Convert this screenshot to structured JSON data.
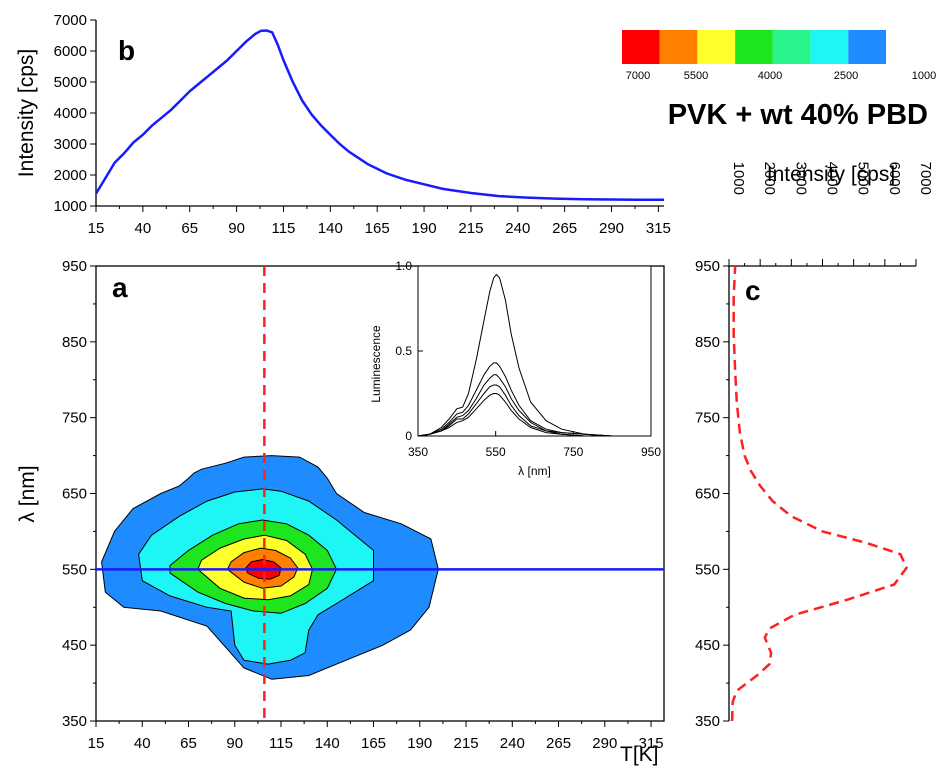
{
  "title": "PVK + wt 40% PBD",
  "colorbar": {
    "colors": [
      "#ff0000",
      "#ff7f00",
      "#ffff2a",
      "#1ee61e",
      "#2af58c",
      "#1ef5f5",
      "#1e8cff"
    ],
    "labels": [
      "7000",
      "5500",
      "4000",
      "2500",
      "1000"
    ]
  },
  "chart_data": [
    {
      "id": "b",
      "type": "line",
      "panel_label": "b",
      "ylabel": "Intensity [cps]",
      "xlabel": "",
      "xlim": [
        15,
        318
      ],
      "ylim": [
        1000,
        7000
      ],
      "xticks": [
        15,
        40,
        65,
        90,
        115,
        140,
        165,
        190,
        215,
        240,
        265,
        290,
        315
      ],
      "yticks": [
        1000,
        2000,
        3000,
        4000,
        5000,
        6000,
        7000
      ],
      "line_color": "#1a1aff",
      "x": [
        15,
        20,
        25,
        30,
        35,
        40,
        45,
        50,
        55,
        60,
        65,
        70,
        75,
        80,
        85,
        90,
        95,
        100,
        103,
        106,
        109,
        112,
        115,
        120,
        125,
        130,
        135,
        140,
        145,
        150,
        155,
        160,
        165,
        170,
        180,
        190,
        200,
        215,
        230,
        245,
        260,
        275,
        290,
        305,
        318
      ],
      "y": [
        1400,
        1900,
        2400,
        2700,
        3050,
        3300,
        3600,
        3850,
        4100,
        4400,
        4700,
        4950,
        5200,
        5450,
        5700,
        6000,
        6300,
        6550,
        6650,
        6660,
        6600,
        6200,
        5700,
        5000,
        4400,
        3950,
        3600,
        3300,
        3000,
        2750,
        2550,
        2350,
        2200,
        2050,
        1850,
        1700,
        1550,
        1420,
        1320,
        1270,
        1240,
        1220,
        1210,
        1200,
        1200
      ]
    },
    {
      "id": "a",
      "type": "heatmap",
      "panel_label": "a",
      "xlabel": "T[K]",
      "ylabel": "λ [nm]",
      "xlim": [
        15,
        322
      ],
      "ylim": [
        350,
        950
      ],
      "xticks": [
        15,
        40,
        65,
        90,
        115,
        140,
        165,
        190,
        215,
        240,
        265,
        290,
        315
      ],
      "yticks": [
        350,
        450,
        550,
        650,
        750,
        850,
        950
      ],
      "cut_temperature": 106,
      "cut_wavelength": 550,
      "contour_levels": [
        1000,
        2500,
        4000,
        5500,
        7000
      ],
      "contours": [
        {
          "level": "1000",
          "color": "#1e8cff",
          "t": [
            20,
            30,
            50,
            75,
            95,
            110,
            130,
            150,
            170,
            185,
            195,
            200,
            196,
            180,
            160,
            145,
            140,
            135,
            125,
            110,
            95,
            85,
            72,
            68,
            65,
            60,
            50,
            35,
            25,
            18,
            20
          ],
          "lam": [
            520,
            500,
            495,
            475,
            420,
            405,
            410,
            430,
            450,
            470,
            500,
            550,
            590,
            610,
            625,
            650,
            670,
            685,
            698,
            700,
            698,
            690,
            682,
            677,
            670,
            660,
            650,
            630,
            600,
            560,
            520
          ]
        },
        {
          "level": "2500",
          "color": "#1ef5f5",
          "t": [
            40,
            55,
            75,
            88,
            90,
            95,
            108,
            120,
            128,
            130,
            135,
            145,
            165,
            165,
            155,
            145,
            130,
            115,
            105,
            90,
            75,
            60,
            45,
            38,
            40
          ],
          "lam": [
            535,
            515,
            500,
            495,
            450,
            430,
            425,
            430,
            440,
            470,
            490,
            505,
            535,
            575,
            595,
            615,
            640,
            653,
            656,
            652,
            640,
            620,
            595,
            570,
            535
          ]
        },
        {
          "level": "4000",
          "color": "#1ee61e",
          "t": [
            55,
            70,
            85,
            100,
            115,
            128,
            140,
            145,
            140,
            130,
            118,
            105,
            92,
            78,
            65,
            55,
            55
          ],
          "lam": [
            545,
            520,
            505,
            495,
            492,
            505,
            525,
            550,
            575,
            595,
            610,
            615,
            610,
            595,
            575,
            555,
            545
          ]
        },
        {
          "level": "5500",
          "color": "#ffff2a",
          "t": [
            70,
            82,
            95,
            108,
            120,
            130,
            132,
            128,
            118,
            106,
            95,
            82,
            72,
            70
          ],
          "lam": [
            550,
            525,
            512,
            510,
            515,
            530,
            550,
            570,
            588,
            595,
            590,
            578,
            562,
            550
          ]
        },
        {
          "level": "7000",
          "color": "#ff7f00",
          "t": [
            86,
            95,
            105,
            115,
            122,
            124,
            120,
            112,
            104,
            95,
            88,
            86
          ],
          "lam": [
            550,
            533,
            525,
            528,
            540,
            552,
            565,
            575,
            578,
            572,
            560,
            550
          ]
        },
        {
          "level": "peak",
          "color": "#ff0000",
          "t": [
            97,
            103,
            109,
            114,
            115,
            111,
            105,
            99,
            96,
            97
          ],
          "lam": [
            545,
            538,
            537,
            542,
            552,
            560,
            563,
            560,
            552,
            545
          ]
        }
      ]
    },
    {
      "id": "c",
      "type": "line",
      "panel_label": "c",
      "xlabel": "Intensity [cps]",
      "ylabel": "",
      "xlim": [
        1000,
        7000
      ],
      "ylim": [
        350,
        950
      ],
      "xticks": [
        1000,
        2000,
        3000,
        4000,
        5000,
        6000,
        7000
      ],
      "yticks": [
        350,
        450,
        550,
        650,
        750,
        850,
        950
      ],
      "line_color": "#ff2020",
      "line_style": "dashed",
      "intensity": [
        1100,
        1120,
        1250,
        1900,
        2300,
        2350,
        2150,
        2300,
        3100,
        4800,
        6300,
        6700,
        6500,
        5400,
        4000,
        3000,
        2400,
        2000,
        1700,
        1500,
        1350,
        1250,
        1200,
        1150,
        1150,
        1200
      ],
      "wavelength": [
        350,
        375,
        390,
        410,
        425,
        440,
        460,
        472,
        490,
        510,
        530,
        552,
        570,
        585,
        600,
        620,
        640,
        660,
        680,
        700,
        730,
        770,
        810,
        860,
        910,
        950
      ]
    },
    {
      "id": "inset",
      "type": "line",
      "xlabel": "λ [nm]",
      "ylabel": "Luminescence",
      "xlim": [
        350,
        950
      ],
      "ylim": [
        0,
        1.0
      ],
      "xticks": [
        350,
        550,
        750,
        950
      ],
      "yticks": [
        0,
        0.5,
        1.0
      ],
      "ytick_labels": [
        "0",
        "0.5",
        "1.0"
      ],
      "line_color": "#000000",
      "x": [
        350,
        380,
        410,
        430,
        450,
        465,
        480,
        500,
        520,
        535,
        545,
        552,
        560,
        575,
        590,
        610,
        640,
        680,
        720,
        780,
        850,
        950
      ],
      "series": [
        {
          "y": [
            0.0,
            0.01,
            0.05,
            0.1,
            0.16,
            0.17,
            0.25,
            0.45,
            0.68,
            0.85,
            0.93,
            0.95,
            0.93,
            0.8,
            0.6,
            0.4,
            0.2,
            0.09,
            0.04,
            0.01,
            0.0,
            0.0
          ]
        },
        {
          "y": [
            0.0,
            0.01,
            0.04,
            0.08,
            0.13,
            0.14,
            0.18,
            0.27,
            0.36,
            0.41,
            0.43,
            0.43,
            0.41,
            0.35,
            0.27,
            0.18,
            0.09,
            0.04,
            0.02,
            0.01,
            0.0,
            0.0
          ]
        },
        {
          "y": [
            0.0,
            0.01,
            0.03,
            0.07,
            0.11,
            0.12,
            0.15,
            0.22,
            0.3,
            0.34,
            0.36,
            0.36,
            0.34,
            0.29,
            0.22,
            0.15,
            0.08,
            0.03,
            0.02,
            0.01,
            0.0,
            0.0
          ]
        },
        {
          "y": [
            0.0,
            0.01,
            0.03,
            0.06,
            0.1,
            0.1,
            0.13,
            0.19,
            0.25,
            0.29,
            0.3,
            0.3,
            0.29,
            0.24,
            0.18,
            0.12,
            0.06,
            0.03,
            0.01,
            0.0,
            0.0,
            0.0
          ]
        },
        {
          "y": [
            0.0,
            0.01,
            0.03,
            0.05,
            0.08,
            0.09,
            0.11,
            0.16,
            0.21,
            0.24,
            0.25,
            0.25,
            0.24,
            0.2,
            0.15,
            0.1,
            0.05,
            0.02,
            0.01,
            0.0,
            0.0,
            0.0
          ]
        }
      ]
    }
  ]
}
